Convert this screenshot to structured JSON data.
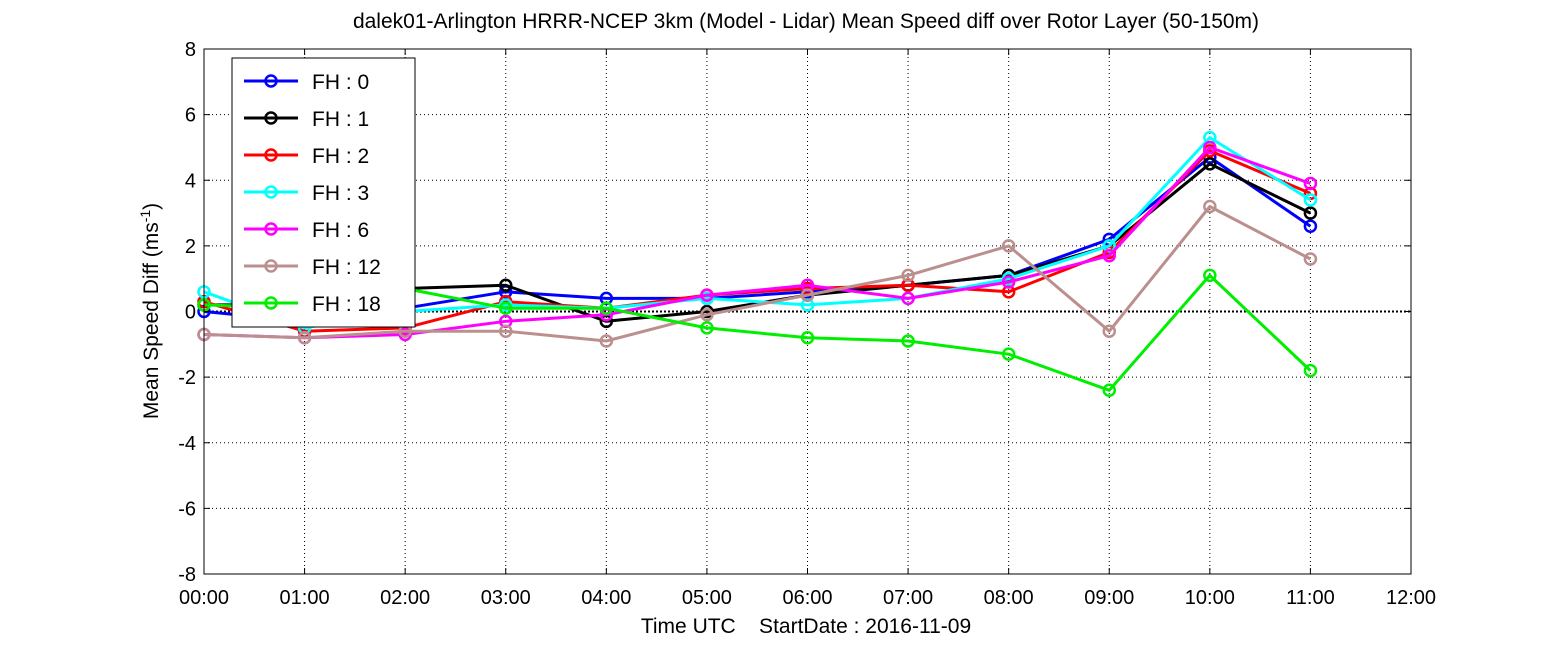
{
  "chart_data": {
    "type": "line",
    "title": "dalek01-Arlington HRRR-NCEP 3km (Model - Lidar) Mean Speed diff over Rotor Layer (50-150m)",
    "xlabel": "Time UTC    StartDate : 2016-11-09",
    "ylabel_main": "Mean Speed Diff (ms",
    "ylabel_sup": "-1",
    "ylabel_end": ")",
    "x_ticks": [
      "00:00",
      "01:00",
      "02:00",
      "03:00",
      "04:00",
      "05:00",
      "06:00",
      "07:00",
      "08:00",
      "09:00",
      "10:00",
      "11:00",
      "12:00"
    ],
    "y_ticks": [
      "8",
      "6",
      "4",
      "2",
      "0",
      "-2",
      "-4",
      "-6",
      "-8"
    ],
    "xlim": [
      0,
      12
    ],
    "ylim": [
      -8,
      8
    ],
    "grid": true,
    "zero_line": true,
    "legend_position": "top-left",
    "x": [
      0,
      1,
      2,
      3,
      4,
      5,
      6,
      7,
      8,
      9,
      10,
      11
    ],
    "series": [
      {
        "name": "FH : 0",
        "color": "#0000ff",
        "values": [
          0.0,
          -0.3,
          0.1,
          0.6,
          0.4,
          0.4,
          0.6,
          0.8,
          1.1,
          2.2,
          4.7,
          2.6
        ]
      },
      {
        "name": "FH : 1",
        "color": "#000000",
        "values": [
          0.2,
          0.2,
          0.7,
          0.8,
          -0.3,
          0.0,
          0.5,
          0.8,
          1.1,
          2.0,
          4.5,
          3.0
        ]
      },
      {
        "name": "FH : 2",
        "color": "#ff0000",
        "values": [
          0.3,
          -0.6,
          -0.5,
          0.3,
          0.1,
          0.5,
          0.7,
          0.8,
          0.6,
          1.8,
          4.9,
          3.6
        ]
      },
      {
        "name": "FH : 3",
        "color": "#00ffff",
        "values": [
          0.6,
          -0.5,
          0.0,
          0.2,
          0.1,
          0.4,
          0.2,
          0.4,
          1.0,
          2.0,
          5.3,
          3.4
        ]
      },
      {
        "name": "FH : 6",
        "color": "#ff00ff",
        "values": [
          -0.7,
          -0.8,
          -0.7,
          -0.3,
          -0.1,
          0.5,
          0.8,
          0.4,
          0.9,
          1.7,
          5.0,
          3.9
        ]
      },
      {
        "name": "FH : 12",
        "color": "#bc8f8f",
        "values": [
          -0.7,
          -0.8,
          -0.6,
          -0.6,
          -0.9,
          -0.1,
          0.5,
          1.1,
          2.0,
          -0.6,
          3.2,
          1.6
        ]
      },
      {
        "name": "FH : 18",
        "color": "#00ee00",
        "values": [
          0.2,
          0.1,
          0.7,
          0.1,
          0.1,
          -0.5,
          -0.8,
          -0.9,
          -1.3,
          -2.4,
          1.1,
          -1.8
        ]
      }
    ]
  }
}
